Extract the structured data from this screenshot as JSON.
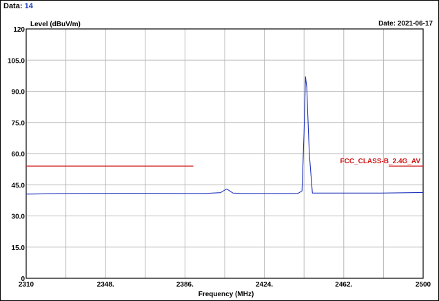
{
  "header": {
    "data_label": "Data:",
    "data_number": "14"
  },
  "chart_data": {
    "type": "line",
    "ylabel": "Level (dBuV/m)",
    "date_text": "Date: 2021-06-17",
    "xlabel": "Frequency (MHz)",
    "xlim": [
      2310,
      2500
    ],
    "ylim": [
      0,
      120
    ],
    "y_ticks": [
      "0",
      "15.0",
      "30.0",
      "45.0",
      "60.0",
      "75.0",
      "90.0",
      "105.0",
      "120"
    ],
    "x_ticks": [
      "2310",
      "2348.",
      "2386.",
      "2424.",
      "2462.",
      "2500"
    ],
    "grid": true,
    "colors": {
      "trace": "#1a2fb8",
      "limit": "#d01818",
      "grid": "#b8b8b8"
    },
    "limit_line": {
      "name": "FCC_CLASS-B_2.4G_AV",
      "segments": [
        {
          "x": [
            2310,
            2390
          ],
          "y": 54
        },
        {
          "x": [
            2483.5,
            2500
          ],
          "y": 54
        }
      ]
    },
    "series": [
      {
        "x": [
          2310,
          2330,
          2360,
          2395,
          2403,
          2406,
          2409,
          2414,
          2440,
          2442,
          2443,
          2443.7,
          2444.3,
          2445.5,
          2447,
          2452,
          2480,
          2500
        ],
        "y": [
          40.5,
          40.8,
          40.9,
          40.8,
          41.2,
          43.0,
          41.0,
          40.8,
          40.8,
          42.0,
          70.0,
          97.0,
          92.0,
          60.0,
          41.0,
          41.0,
          41.0,
          41.3
        ]
      }
    ]
  }
}
